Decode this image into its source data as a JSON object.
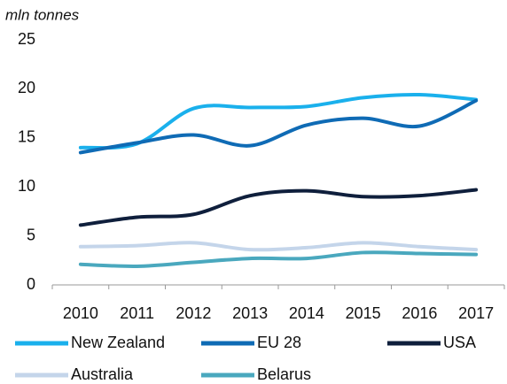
{
  "chart_data": {
    "type": "line",
    "y_label": "mln tonnes",
    "categories": [
      "2010",
      "2011",
      "2012",
      "2013",
      "2014",
      "2015",
      "2016",
      "2017"
    ],
    "series": [
      {
        "name": "New Zealand",
        "color": "#1ab0ec",
        "values": [
          14.0,
          14.4,
          18.0,
          18.1,
          18.2,
          19.1,
          19.4,
          18.9
        ]
      },
      {
        "name": "EU 28",
        "color": "#0f6bb5",
        "values": [
          13.5,
          14.5,
          15.3,
          14.2,
          16.3,
          17.0,
          16.2,
          18.8
        ]
      },
      {
        "name": "USA",
        "color": "#0f1f3c",
        "values": [
          6.1,
          6.9,
          7.2,
          9.1,
          9.6,
          9.0,
          9.1,
          9.7
        ]
      },
      {
        "name": "Australia",
        "color": "#c4d5ea",
        "values": [
          3.9,
          4.0,
          4.3,
          3.6,
          3.8,
          4.3,
          3.9,
          3.6
        ]
      },
      {
        "name": "Belarus",
        "color": "#4aa8be",
        "values": [
          2.1,
          1.9,
          2.3,
          2.7,
          2.7,
          3.3,
          3.2,
          3.1
        ]
      }
    ],
    "ylim": [
      0,
      25
    ],
    "yticks": [
      0,
      5,
      10,
      15,
      20,
      25
    ],
    "grid": false
  }
}
